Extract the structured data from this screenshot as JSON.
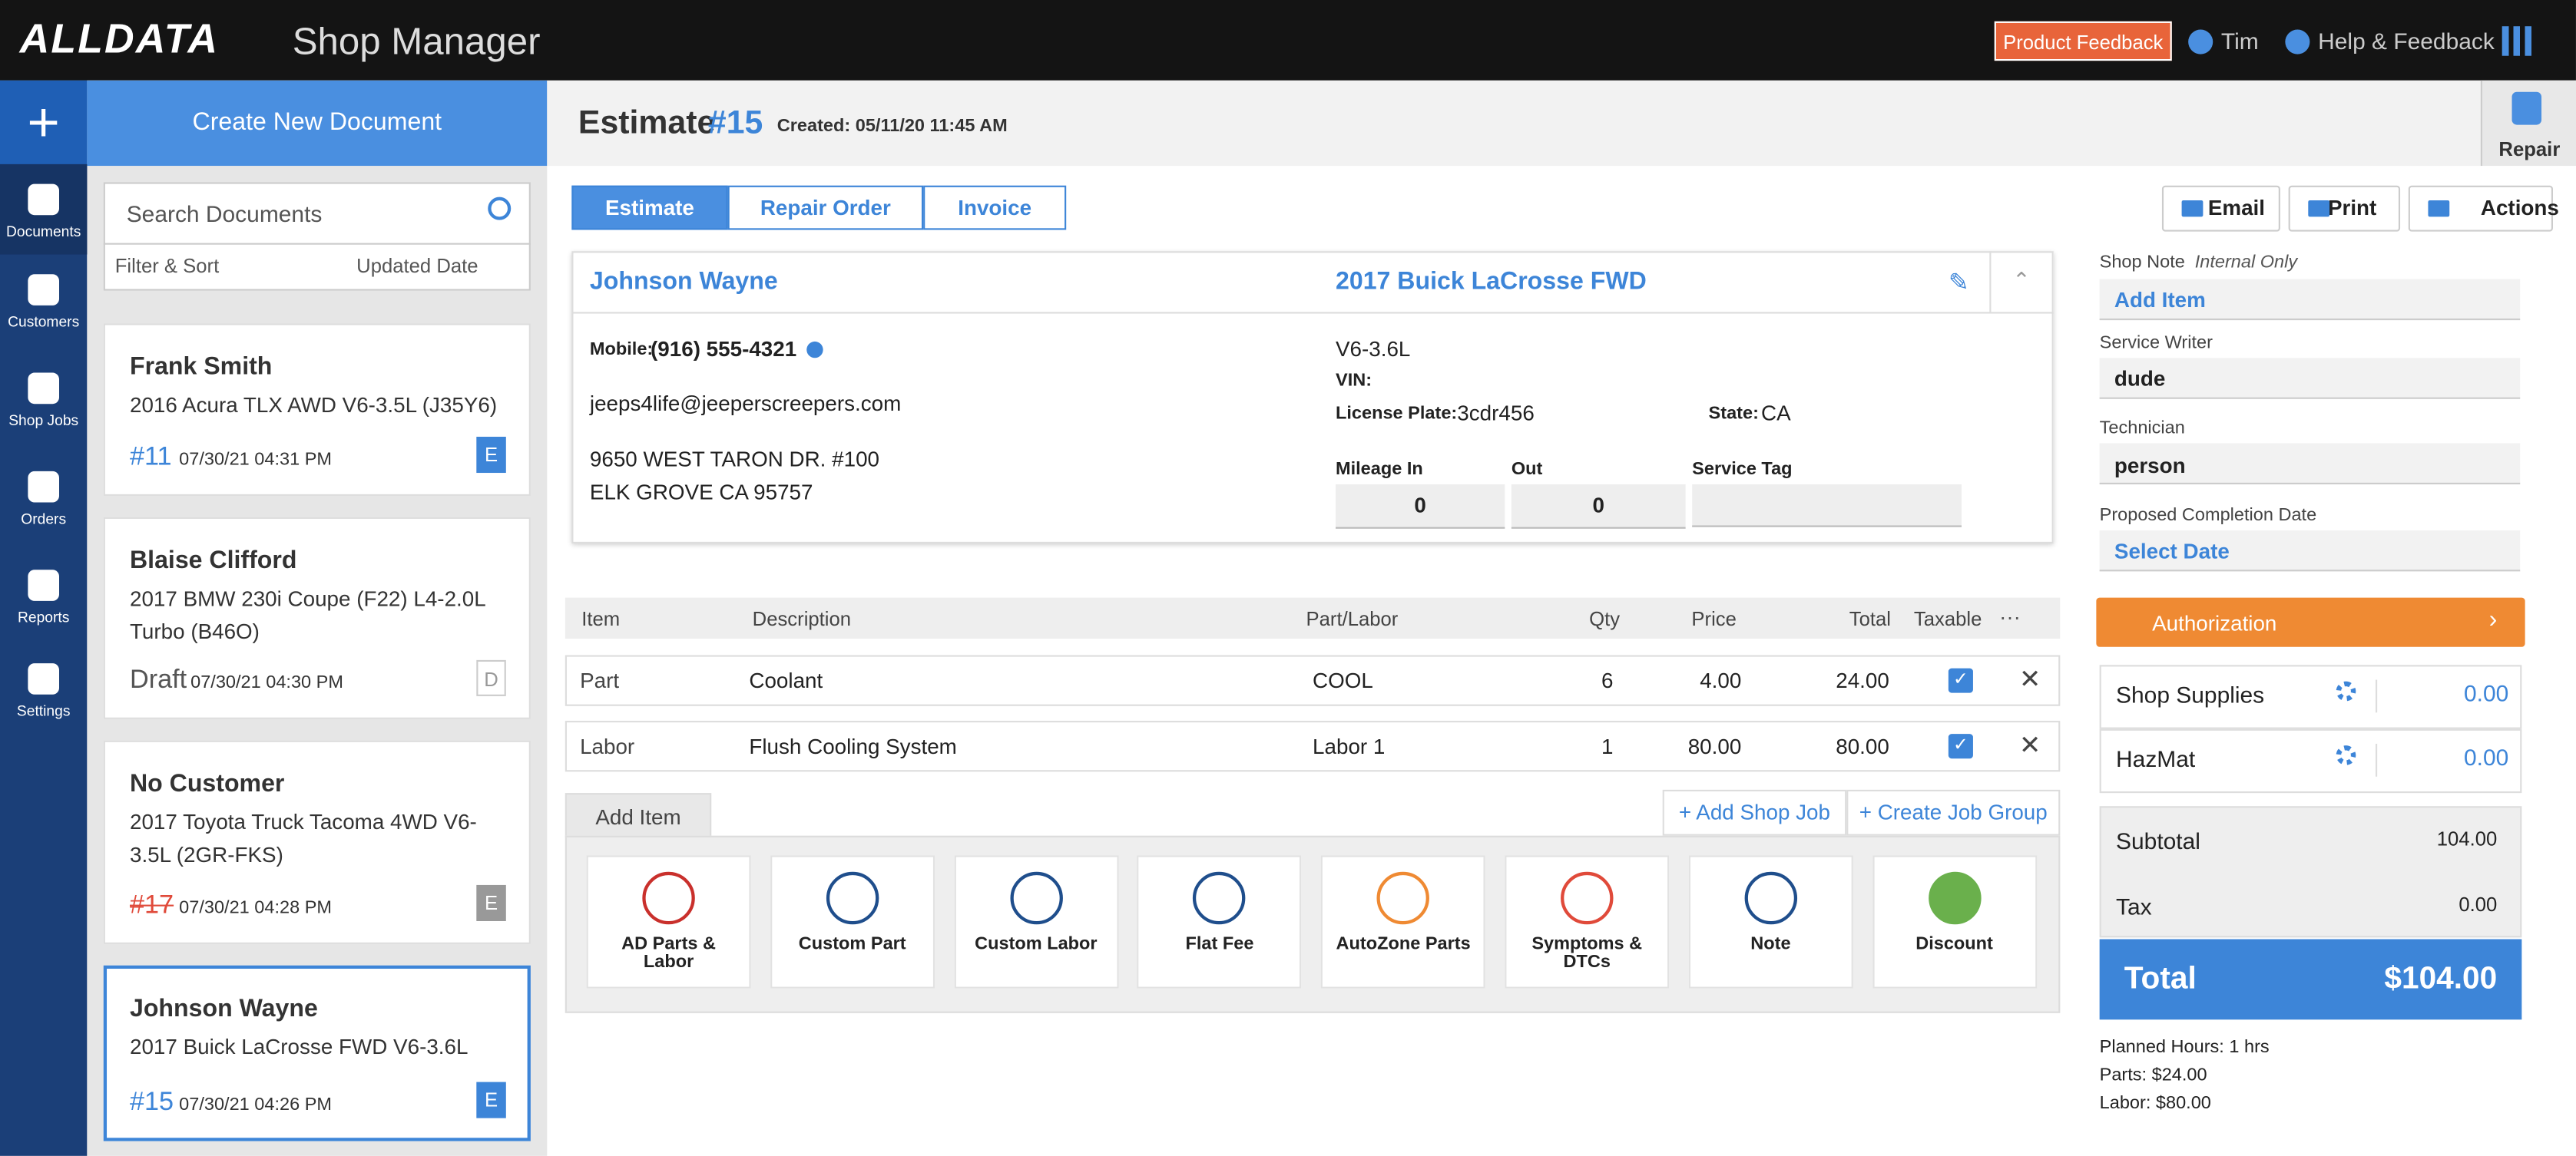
{
  "header": {
    "logo": "ALLDATA",
    "product": "Shop Manager",
    "feedback_button": "Product Feedback",
    "user": "Tim",
    "help": "Help & Feedback"
  },
  "nav": [
    "Documents",
    "Customers",
    "Shop Jobs",
    "Orders",
    "Reports",
    "Settings"
  ],
  "sidebar": {
    "create": "Create New Document",
    "search_placeholder": "Search Documents",
    "filter": "Filter & Sort",
    "sort": "Updated Date",
    "documents": [
      {
        "name": "Frank Smith",
        "vehicle": "2016 Acura TLX AWD V6-3.5L (J35Y6)",
        "number": "#11",
        "date": "07/30/21 04:31 PM",
        "badge": "E"
      },
      {
        "name": "Blaise Clifford",
        "vehicle": "2017 BMW 230i Coupe (F22) L4-2.0L Turbo (B46O)",
        "number": "Draft",
        "date": "07/30/21 04:30 PM",
        "badge": "D"
      },
      {
        "name": "No Customer",
        "vehicle": "2017 Toyota Truck Tacoma 4WD V6-3.5L (2GR-FKS)",
        "number": "#17",
        "date": "07/30/21 04:28 PM",
        "badge": "E"
      },
      {
        "name": "Johnson Wayne",
        "vehicle": "2017 Buick LaCrosse FWD V6-3.6L",
        "number": "#15",
        "date": "07/30/21 04:26 PM",
        "badge": "E"
      }
    ]
  },
  "document": {
    "type": "Estimate",
    "number": "#15",
    "created": "Created: 05/11/20 11:45 AM",
    "repair": "Repair",
    "tabs": [
      "Estimate",
      "Repair Order",
      "Invoice"
    ],
    "actions": [
      "Email",
      "Print",
      "Actions"
    ],
    "customer": {
      "name": "Johnson Wayne",
      "mobile_label": "Mobile:",
      "mobile": "(916) 555-4321",
      "email": "jeeps4life@jeeperscreepers.com",
      "address1": "9650 WEST TARON DR. #100",
      "address2": "ELK GROVE CA 95757"
    },
    "vehicle": {
      "title": "2017 Buick LaCrosse FWD",
      "engine": "V6-3.6L",
      "vin_label": "VIN:",
      "plate_label": "License Plate:",
      "plate": "3cdr456",
      "state_label": "State:",
      "state": "CA",
      "mileage_in_label": "Mileage In",
      "mileage_in": "0",
      "out_label": "Out",
      "out": "0",
      "service_tag_label": "Service Tag"
    }
  },
  "table": {
    "headers": [
      "Item",
      "Description",
      "Part/Labor",
      "Qty",
      "Price",
      "Total",
      "Taxable"
    ],
    "rows": [
      [
        "Part",
        "Coolant",
        "COOL",
        "6",
        "4.00",
        "24.00"
      ],
      [
        "Labor",
        "Flush Cooling System",
        "Labor 1",
        "1",
        "80.00",
        "80.00"
      ]
    ]
  },
  "add_item": "Add Item",
  "add_shop_job": "+ Add Shop Job",
  "create_job_group": "+ Create Job Group",
  "tiles": [
    "AD Parts & Labor",
    "Custom Part",
    "Custom Labor",
    "Flat Fee",
    "AutoZone Parts",
    "Symptoms & DTCs",
    "Note",
    "Discount"
  ],
  "side": {
    "shop_note_label": "Shop Note",
    "shop_note_hint": "Internal Only",
    "shop_note_add": "Add Item",
    "service_writer_label": "Service Writer",
    "service_writer": "dude",
    "technician_label": "Technician",
    "technician": "person",
    "completion_label": "Proposed Completion Date",
    "completion": "Select Date",
    "authorization": "Authorization",
    "fees": [
      {
        "name": "Shop Supplies",
        "value": "0.00"
      },
      {
        "name": "HazMat",
        "value": "0.00"
      }
    ],
    "subtotal_label": "Subtotal",
    "subtotal": "104.00",
    "tax_label": "Tax",
    "tax": "0.00",
    "total_label": "Total",
    "total": "$104.00",
    "planned": "Planned Hours: 1 hrs",
    "parts": "Parts: $24.00",
    "labor": "Labor: $80.00"
  }
}
